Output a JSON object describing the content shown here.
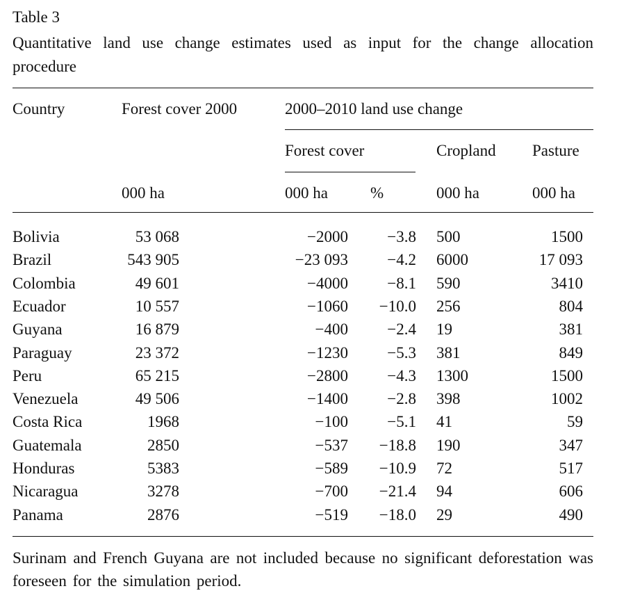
{
  "table": {
    "label": "Table 3",
    "caption": "Quantitative land use change estimates used as input for the change allocation procedure",
    "headers": {
      "country": "Country",
      "forest_cover_2000": "Forest cover 2000",
      "land_use_change": "2000–2010 land use change",
      "forest_cover": "Forest cover",
      "cropland": "Cropland",
      "pasture": "Pasture"
    },
    "units": {
      "forest_2000": "000 ha",
      "forest_change_ha": "000 ha",
      "forest_change_pct": "%",
      "cropland": "000 ha",
      "pasture": "000 ha"
    },
    "rows": [
      {
        "country": "Bolivia",
        "forest_2000": "53 068",
        "forest_ha": "−2000",
        "forest_pct": "−3.8",
        "cropland": "500",
        "pasture": "1500"
      },
      {
        "country": "Brazil",
        "forest_2000": "543 905",
        "forest_ha": "−23 093",
        "forest_pct": "−4.2",
        "cropland": "6000",
        "pasture": "17 093"
      },
      {
        "country": "Colombia",
        "forest_2000": "49 601",
        "forest_ha": "−4000",
        "forest_pct": "−8.1",
        "cropland": "590",
        "pasture": "3410"
      },
      {
        "country": "Ecuador",
        "forest_2000": "10 557",
        "forest_ha": "−1060",
        "forest_pct": "−10.0",
        "cropland": "256",
        "pasture": "804"
      },
      {
        "country": "Guyana",
        "forest_2000": "16 879",
        "forest_ha": "−400",
        "forest_pct": "−2.4",
        "cropland": "19",
        "pasture": "381"
      },
      {
        "country": "Paraguay",
        "forest_2000": "23 372",
        "forest_ha": "−1230",
        "forest_pct": "−5.3",
        "cropland": "381",
        "pasture": "849"
      },
      {
        "country": "Peru",
        "forest_2000": "65 215",
        "forest_ha": "−2800",
        "forest_pct": "−4.3",
        "cropland": "1300",
        "pasture": "1500"
      },
      {
        "country": "Venezuela",
        "forest_2000": "49 506",
        "forest_ha": "−1400",
        "forest_pct": "−2.8",
        "cropland": "398",
        "pasture": "1002"
      },
      {
        "country": "Costa Rica",
        "forest_2000": "1968",
        "forest_ha": "−100",
        "forest_pct": "−5.1",
        "cropland": "41",
        "pasture": "59"
      },
      {
        "country": "Guatemala",
        "forest_2000": "2850",
        "forest_ha": "−537",
        "forest_pct": "−18.8",
        "cropland": "190",
        "pasture": "347"
      },
      {
        "country": "Honduras",
        "forest_2000": "5383",
        "forest_ha": "−589",
        "forest_pct": "−10.9",
        "cropland": "72",
        "pasture": "517"
      },
      {
        "country": "Nicaragua",
        "forest_2000": "3278",
        "forest_ha": "−700",
        "forest_pct": "−21.4",
        "cropland": "94",
        "pasture": "606"
      },
      {
        "country": "Panama",
        "forest_2000": "2876",
        "forest_ha": "−519",
        "forest_pct": "−18.0",
        "cropland": "29",
        "pasture": "490"
      }
    ],
    "footnote": "Surinam and French Guyana are not included because no significant deforestation was foreseen for the simulation period."
  }
}
